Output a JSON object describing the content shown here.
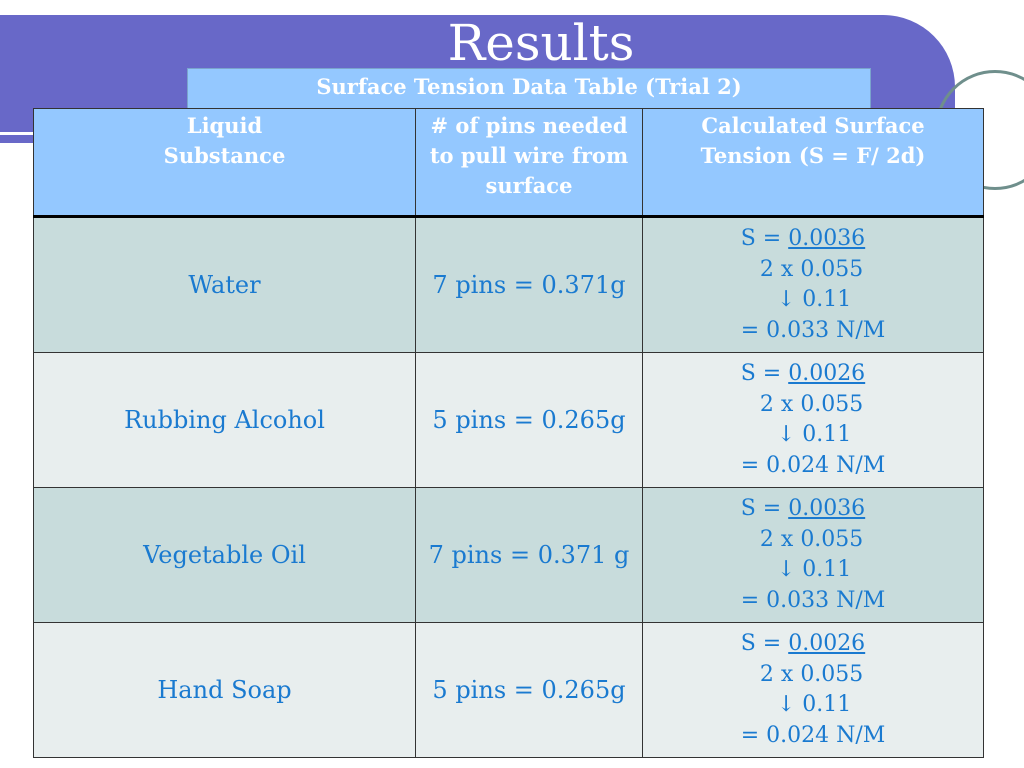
{
  "slide": {
    "title": "Results",
    "subtitle": "Surface Tension Data Table (Trial 2)"
  },
  "table": {
    "headers": {
      "col1_line1": "Liquid",
      "col1_line2": "Substance",
      "col2_line1": "# of pins needed",
      "col2_line2": "to pull wire from",
      "col2_line3": "surface",
      "col3_line1": "Calculated Surface",
      "col3_line2": "Tension (S = F/ 2d)"
    },
    "rows": [
      {
        "substance": "Water",
        "pins": "7 pins = 0.371g",
        "calc": {
          "prefix": "S = ",
          "numerator": "0.0036",
          "denominator": "2 x 0.055",
          "step": "↓ 0.11",
          "result": "= 0.033 N/M"
        }
      },
      {
        "substance": "Rubbing Alcohol",
        "pins": "5 pins = 0.265g",
        "calc": {
          "prefix": "S = ",
          "numerator": "0.0026",
          "denominator": "2 x 0.055",
          "step": "↓ 0.11",
          "result": "= 0.024 N/M"
        }
      },
      {
        "substance": "Vegetable Oil",
        "pins": "7 pins = 0.371 g",
        "calc": {
          "prefix": "S = ",
          "numerator": "0.0036",
          "denominator": "2 x 0.055",
          "step": "↓ 0.11",
          "result": "= 0.033 N/M"
        }
      },
      {
        "substance": "Hand Soap",
        "pins": "5 pins = 0.265g",
        "calc": {
          "prefix": "S = ",
          "numerator": "0.0026",
          "denominator": "2 x 0.055",
          "step": "↓ 0.11",
          "result": "= 0.024 N/M"
        }
      }
    ]
  },
  "colors": {
    "banner": "#6868c8",
    "header_fill": "#94c8ff",
    "row_shade_a": "#c8dcdc",
    "row_shade_b": "#e8eeee",
    "text_blue": "#1a7ad0"
  }
}
